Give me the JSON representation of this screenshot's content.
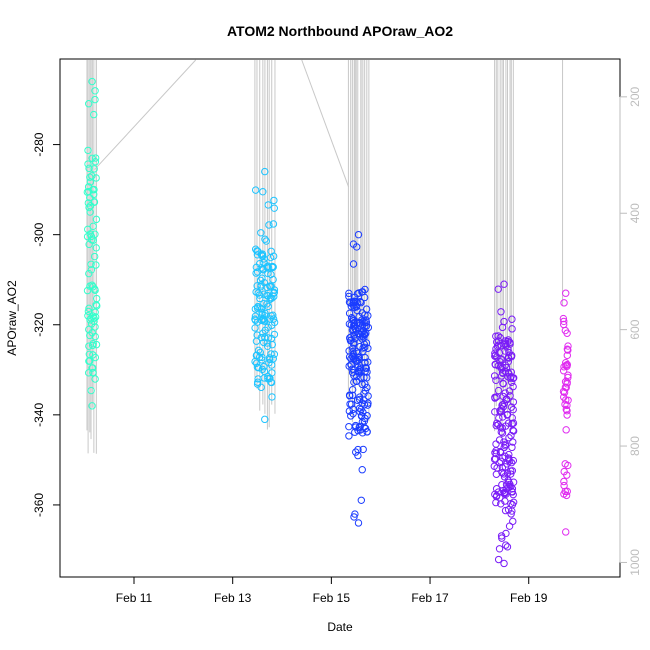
{
  "chart_data": {
    "type": "scatter",
    "title": "ATOM2 Northbound APOraw_AO2",
    "xlabel": "Date",
    "ylabel": "APOraw_AO2",
    "x_ticks": [
      {
        "day": 11,
        "label": "Feb 11"
      },
      {
        "day": 13,
        "label": "Feb 13"
      },
      {
        "day": 15,
        "label": "Feb 15"
      },
      {
        "day": 17,
        "label": "Feb 17"
      },
      {
        "day": 19,
        "label": "Feb 19"
      }
    ],
    "xlim_days": [
      9.5,
      20.85
    ],
    "y_ticks": [
      -280,
      -300,
      -320,
      -340,
      -360
    ],
    "ylim": [
      -376,
      -261
    ],
    "y2_ticks": [
      200,
      400,
      600,
      800,
      1000
    ],
    "y2lim": [
      1025,
      135
    ],
    "clusters": [
      {
        "x_start": 10.05,
        "x_end": 10.25,
        "y_top": -266,
        "y_bottom": -338,
        "y_core_top": -283,
        "y_core_bottom": -333,
        "count": 85,
        "color": "#33ffcc"
      },
      {
        "x_start": 13.45,
        "x_end": 13.85,
        "y_top": -286,
        "y_bottom": -341,
        "y_core_top": -303,
        "y_core_bottom": -333,
        "count": 140,
        "color": "#1fc4ff"
      },
      {
        "x_start": 15.35,
        "x_end": 15.75,
        "y_top": -300,
        "y_bottom": -364,
        "y_core_top": -312,
        "y_core_bottom": -345,
        "count": 190,
        "color": "#1a3cff"
      },
      {
        "x_start": 18.3,
        "x_end": 18.7,
        "y_top": -311,
        "y_bottom": -373,
        "y_core_top": -322,
        "y_core_bottom": -360,
        "count": 190,
        "color": "#7a1cf7"
      },
      {
        "x_start": 19.7,
        "x_end": 19.8,
        "y_top": -313,
        "y_bottom": -366,
        "y_core_top": -318,
        "y_core_bottom": -358,
        "count": 45,
        "color": "#e02bf0"
      }
    ],
    "depth_profiles": [
      {
        "x_start": 10.05,
        "x_end": 10.25,
        "depth_bottom": 815,
        "count": 8
      },
      {
        "x_start": 13.45,
        "x_end": 13.85,
        "depth_bottom": 795,
        "count": 9
      },
      {
        "x_start": 15.35,
        "x_end": 15.75,
        "depth_bottom": 770,
        "count": 13
      },
      {
        "x_start": 18.3,
        "x_end": 18.7,
        "depth_bottom": 795,
        "count": 11
      },
      {
        "x_start": 19.7,
        "x_end": 19.75,
        "depth_bottom": 640,
        "count": 1
      }
    ],
    "transit_lines": [
      {
        "from": [
          10.2,
          325
        ],
        "to": [
          12.25,
          135
        ]
      },
      {
        "from": [
          14.4,
          135
        ],
        "to": [
          15.35,
          355
        ]
      }
    ],
    "grid": false,
    "legend": "none"
  }
}
